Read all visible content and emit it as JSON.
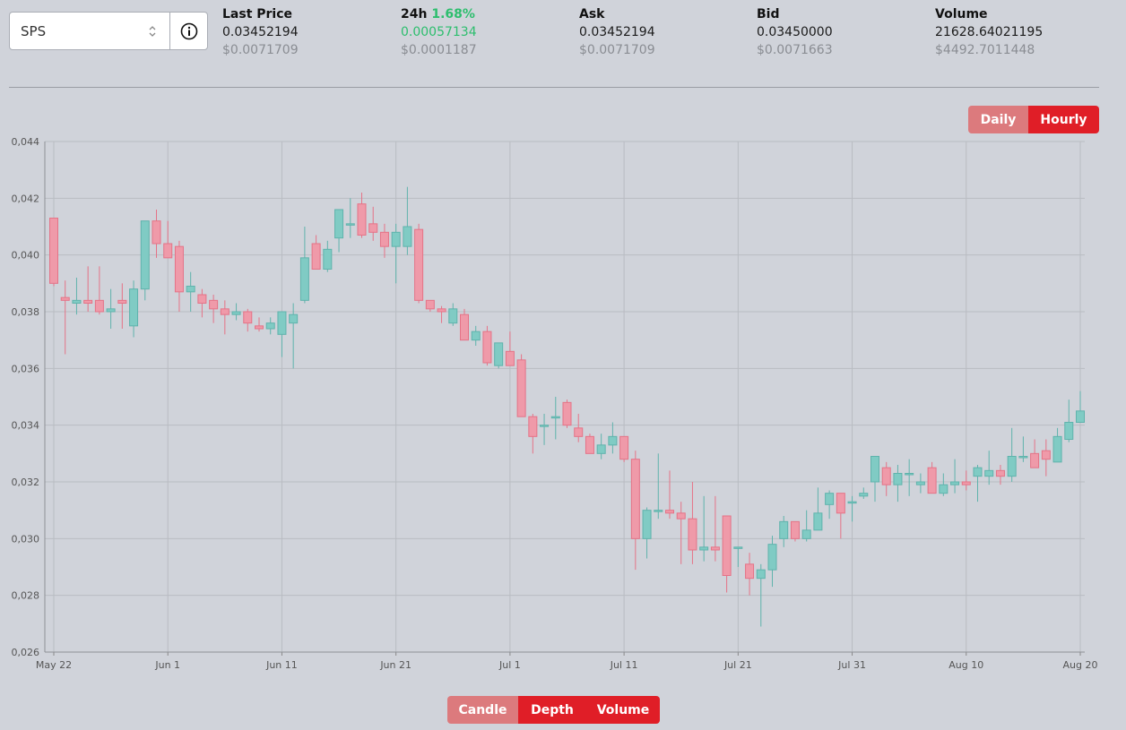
{
  "selector": {
    "value": "SPS"
  },
  "stats": {
    "last_price": {
      "label": "Last Price",
      "value": "0.03452194",
      "usd": "$0.0071709"
    },
    "change_24h": {
      "label": "24h",
      "pct": "1.68%",
      "value": "0.00057134",
      "usd": "$0.0001187"
    },
    "ask": {
      "label": "Ask",
      "value": "0.03452194",
      "usd": "$0.0071709"
    },
    "bid": {
      "label": "Bid",
      "value": "0.03450000",
      "usd": "$0.0071663"
    },
    "volume": {
      "label": "Volume",
      "value": "21628.64021195",
      "usd": "$4492.7011448"
    }
  },
  "range_toggle": {
    "daily": "Daily",
    "hourly": "Hourly"
  },
  "view_toggle": {
    "candle": "Candle",
    "depth": "Depth",
    "volume": "Volume"
  },
  "colors": {
    "up": "#80cbc4",
    "up_stroke": "#5fb3ac",
    "down": "#ef9aa9",
    "down_stroke": "#e57387",
    "active": "#e01e27",
    "inactive": "#dc7a7d"
  },
  "chart_data": {
    "type": "candlestick",
    "ylim": [
      0.026,
      0.044
    ],
    "y_ticks": [
      "0,026",
      "0,028",
      "0,030",
      "0,032",
      "0,034",
      "0,036",
      "0,038",
      "0,040",
      "0,042",
      "0,044"
    ],
    "x_ticks": [
      "May 22",
      "Jun 1",
      "Jun 11",
      "Jun 21",
      "Jul 1",
      "Jul 11",
      "Jul 21",
      "Jul 31",
      "Aug 10",
      "Aug 20"
    ],
    "grid": true,
    "candles": [
      {
        "d": "May 22",
        "o": 0.0413,
        "h": 0.0413,
        "l": 0.0389,
        "c": 0.039
      },
      {
        "d": "May 23",
        "o": 0.0385,
        "h": 0.0391,
        "l": 0.0365,
        "c": 0.0384
      },
      {
        "d": "May 24",
        "o": 0.0383,
        "h": 0.0392,
        "l": 0.0379,
        "c": 0.0384
      },
      {
        "d": "May 25",
        "o": 0.0384,
        "h": 0.0396,
        "l": 0.038,
        "c": 0.0383
      },
      {
        "d": "May 26",
        "o": 0.0384,
        "h": 0.0396,
        "l": 0.0379,
        "c": 0.038
      },
      {
        "d": "May 27",
        "o": 0.038,
        "h": 0.0388,
        "l": 0.0374,
        "c": 0.0381
      },
      {
        "d": "May 28",
        "o": 0.0384,
        "h": 0.039,
        "l": 0.0374,
        "c": 0.0383
      },
      {
        "d": "May 29",
        "o": 0.0375,
        "h": 0.0391,
        "l": 0.0371,
        "c": 0.0388
      },
      {
        "d": "May 30",
        "o": 0.0388,
        "h": 0.0412,
        "l": 0.0384,
        "c": 0.0412
      },
      {
        "d": "May 31",
        "o": 0.0412,
        "h": 0.0416,
        "l": 0.0399,
        "c": 0.0404
      },
      {
        "d": "Jun 1",
        "o": 0.0404,
        "h": 0.0412,
        "l": 0.0399,
        "c": 0.0399
      },
      {
        "d": "Jun 2",
        "o": 0.0403,
        "h": 0.0405,
        "l": 0.038,
        "c": 0.0387
      },
      {
        "d": "Jun 3",
        "o": 0.0387,
        "h": 0.0394,
        "l": 0.038,
        "c": 0.0389
      },
      {
        "d": "Jun 4",
        "o": 0.0386,
        "h": 0.0388,
        "l": 0.0378,
        "c": 0.0383
      },
      {
        "d": "Jun 5",
        "o": 0.0384,
        "h": 0.0386,
        "l": 0.0376,
        "c": 0.0381
      },
      {
        "d": "Jun 6",
        "o": 0.0381,
        "h": 0.0384,
        "l": 0.0372,
        "c": 0.0379
      },
      {
        "d": "Jun 7",
        "o": 0.0379,
        "h": 0.0383,
        "l": 0.0377,
        "c": 0.038
      },
      {
        "d": "Jun 8",
        "o": 0.038,
        "h": 0.0381,
        "l": 0.0373,
        "c": 0.0376
      },
      {
        "d": "Jun 9",
        "o": 0.0375,
        "h": 0.0378,
        "l": 0.0373,
        "c": 0.0374
      },
      {
        "d": "Jun 10",
        "o": 0.0374,
        "h": 0.0378,
        "l": 0.0372,
        "c": 0.0376
      },
      {
        "d": "Jun 11",
        "o": 0.0372,
        "h": 0.038,
        "l": 0.0364,
        "c": 0.038
      },
      {
        "d": "Jun 12",
        "o": 0.0376,
        "h": 0.0383,
        "l": 0.036,
        "c": 0.0379
      },
      {
        "d": "Jun 13",
        "o": 0.0384,
        "h": 0.041,
        "l": 0.0383,
        "c": 0.0399
      },
      {
        "d": "Jun 14",
        "o": 0.0404,
        "h": 0.0407,
        "l": 0.0395,
        "c": 0.0395
      },
      {
        "d": "Jun 15",
        "o": 0.0395,
        "h": 0.0405,
        "l": 0.0394,
        "c": 0.0402
      },
      {
        "d": "Jun 16",
        "o": 0.0406,
        "h": 0.0416,
        "l": 0.0401,
        "c": 0.0416
      },
      {
        "d": "Jun 17",
        "o": 0.0411,
        "h": 0.042,
        "l": 0.0406,
        "c": 0.0411
      },
      {
        "d": "Jun 18",
        "o": 0.0418,
        "h": 0.0422,
        "l": 0.0406,
        "c": 0.0407
      },
      {
        "d": "Jun 19",
        "o": 0.0411,
        "h": 0.0417,
        "l": 0.0405,
        "c": 0.0408
      },
      {
        "d": "Jun 20",
        "o": 0.0408,
        "h": 0.0411,
        "l": 0.0399,
        "c": 0.0403
      },
      {
        "d": "Jun 21",
        "o": 0.0403,
        "h": 0.0411,
        "l": 0.039,
        "c": 0.0408
      },
      {
        "d": "Jun 22",
        "o": 0.0403,
        "h": 0.0424,
        "l": 0.04,
        "c": 0.041
      },
      {
        "d": "Jun 23",
        "o": 0.0409,
        "h": 0.0411,
        "l": 0.0383,
        "c": 0.0384
      },
      {
        "d": "Jun 24",
        "o": 0.0384,
        "h": 0.0384,
        "l": 0.038,
        "c": 0.0381
      },
      {
        "d": "Jun 25",
        "o": 0.0381,
        "h": 0.0382,
        "l": 0.0376,
        "c": 0.038
      },
      {
        "d": "Jun 26",
        "o": 0.0376,
        "h": 0.0383,
        "l": 0.0375,
        "c": 0.0381
      },
      {
        "d": "Jun 27",
        "o": 0.0379,
        "h": 0.0381,
        "l": 0.037,
        "c": 0.037
      },
      {
        "d": "Jun 28",
        "o": 0.037,
        "h": 0.0375,
        "l": 0.0368,
        "c": 0.0373
      },
      {
        "d": "Jun 29",
        "o": 0.0373,
        "h": 0.0375,
        "l": 0.0361,
        "c": 0.0362
      },
      {
        "d": "Jun 30",
        "o": 0.0361,
        "h": 0.0369,
        "l": 0.036,
        "c": 0.0369
      },
      {
        "d": "Jul 1",
        "o": 0.0366,
        "h": 0.0373,
        "l": 0.0361,
        "c": 0.0361
      },
      {
        "d": "Jul 2",
        "o": 0.0363,
        "h": 0.0365,
        "l": 0.0343,
        "c": 0.0343
      },
      {
        "d": "Jul 3",
        "o": 0.0343,
        "h": 0.0344,
        "l": 0.033,
        "c": 0.0336
      },
      {
        "d": "Jul 4",
        "o": 0.034,
        "h": 0.0344,
        "l": 0.0333,
        "c": 0.034
      },
      {
        "d": "Jul 5",
        "o": 0.0343,
        "h": 0.035,
        "l": 0.0335,
        "c": 0.0343
      },
      {
        "d": "Jul 6",
        "o": 0.0348,
        "h": 0.0349,
        "l": 0.0339,
        "c": 0.034
      },
      {
        "d": "Jul 7",
        "o": 0.0339,
        "h": 0.0344,
        "l": 0.0334,
        "c": 0.0336
      },
      {
        "d": "Jul 8",
        "o": 0.0336,
        "h": 0.0337,
        "l": 0.033,
        "c": 0.033
      },
      {
        "d": "Jul 9",
        "o": 0.033,
        "h": 0.0337,
        "l": 0.0328,
        "c": 0.0333
      },
      {
        "d": "Jul 10",
        "o": 0.0333,
        "h": 0.0341,
        "l": 0.033,
        "c": 0.0336
      },
      {
        "d": "Jul 11",
        "o": 0.0336,
        "h": 0.0336,
        "l": 0.0327,
        "c": 0.0328
      },
      {
        "d": "Jul 12",
        "o": 0.0328,
        "h": 0.0331,
        "l": 0.0289,
        "c": 0.03
      },
      {
        "d": "Jul 13",
        "o": 0.03,
        "h": 0.0311,
        "l": 0.0293,
        "c": 0.031
      },
      {
        "d": "Jul 14",
        "o": 0.031,
        "h": 0.033,
        "l": 0.0307,
        "c": 0.031
      },
      {
        "d": "Jul 15",
        "o": 0.031,
        "h": 0.0324,
        "l": 0.0307,
        "c": 0.0309
      },
      {
        "d": "Jul 16",
        "o": 0.0309,
        "h": 0.0313,
        "l": 0.0291,
        "c": 0.0307
      },
      {
        "d": "Jul 17",
        "o": 0.0307,
        "h": 0.032,
        "l": 0.0291,
        "c": 0.0296
      },
      {
        "d": "Jul 18",
        "o": 0.0296,
        "h": 0.0315,
        "l": 0.0292,
        "c": 0.0297
      },
      {
        "d": "Jul 19",
        "o": 0.0297,
        "h": 0.0315,
        "l": 0.0292,
        "c": 0.0296
      },
      {
        "d": "Jul 20",
        "o": 0.0308,
        "h": 0.0308,
        "l": 0.0281,
        "c": 0.0287
      },
      {
        "d": "Jul 21",
        "o": 0.0297,
        "h": 0.0297,
        "l": 0.029,
        "c": 0.0297
      },
      {
        "d": "Jul 22",
        "o": 0.0291,
        "h": 0.0295,
        "l": 0.028,
        "c": 0.0286
      },
      {
        "d": "Jul 23",
        "o": 0.0286,
        "h": 0.0291,
        "l": 0.0269,
        "c": 0.0289
      },
      {
        "d": "Jul 24",
        "o": 0.0289,
        "h": 0.0301,
        "l": 0.0283,
        "c": 0.0298
      },
      {
        "d": "Jul 25",
        "o": 0.03,
        "h": 0.0308,
        "l": 0.0297,
        "c": 0.0306
      },
      {
        "d": "Jul 26",
        "o": 0.0306,
        "h": 0.0306,
        "l": 0.0299,
        "c": 0.03
      },
      {
        "d": "Jul 27",
        "o": 0.03,
        "h": 0.031,
        "l": 0.0299,
        "c": 0.0303
      },
      {
        "d": "Jul 28",
        "o": 0.0303,
        "h": 0.0318,
        "l": 0.0303,
        "c": 0.0309
      },
      {
        "d": "Jul 29",
        "o": 0.0312,
        "h": 0.0317,
        "l": 0.0307,
        "c": 0.0316
      },
      {
        "d": "Jul 30",
        "o": 0.0316,
        "h": 0.0316,
        "l": 0.03,
        "c": 0.0309
      },
      {
        "d": "Jul 31",
        "o": 0.0313,
        "h": 0.0315,
        "l": 0.0306,
        "c": 0.0313
      },
      {
        "d": "Aug 1",
        "o": 0.0315,
        "h": 0.0318,
        "l": 0.0314,
        "c": 0.0316
      },
      {
        "d": "Aug 2",
        "o": 0.032,
        "h": 0.0329,
        "l": 0.0313,
        "c": 0.0329
      },
      {
        "d": "Aug 3",
        "o": 0.0325,
        "h": 0.0327,
        "l": 0.0315,
        "c": 0.0319
      },
      {
        "d": "Aug 4",
        "o": 0.0319,
        "h": 0.0326,
        "l": 0.0313,
        "c": 0.0323
      },
      {
        "d": "Aug 5",
        "o": 0.0323,
        "h": 0.0328,
        "l": 0.0315,
        "c": 0.0323
      },
      {
        "d": "Aug 6",
        "o": 0.0319,
        "h": 0.0323,
        "l": 0.0316,
        "c": 0.032
      },
      {
        "d": "Aug 7",
        "o": 0.0325,
        "h": 0.0327,
        "l": 0.0316,
        "c": 0.0316
      },
      {
        "d": "Aug 8",
        "o": 0.0316,
        "h": 0.0323,
        "l": 0.0315,
        "c": 0.0319
      },
      {
        "d": "Aug 9",
        "o": 0.0319,
        "h": 0.0328,
        "l": 0.0316,
        "c": 0.032
      },
      {
        "d": "Aug 10",
        "o": 0.032,
        "h": 0.0324,
        "l": 0.0317,
        "c": 0.0319
      },
      {
        "d": "Aug 11",
        "o": 0.0322,
        "h": 0.0326,
        "l": 0.0313,
        "c": 0.0325
      },
      {
        "d": "Aug 12",
        "o": 0.0322,
        "h": 0.0331,
        "l": 0.0319,
        "c": 0.0324
      },
      {
        "d": "Aug 13",
        "o": 0.0324,
        "h": 0.0326,
        "l": 0.0319,
        "c": 0.0322
      },
      {
        "d": "Aug 14",
        "o": 0.0322,
        "h": 0.0339,
        "l": 0.032,
        "c": 0.0329
      },
      {
        "d": "Aug 15",
        "o": 0.0329,
        "h": 0.0336,
        "l": 0.0327,
        "c": 0.0329
      },
      {
        "d": "Aug 16",
        "o": 0.033,
        "h": 0.0335,
        "l": 0.0325,
        "c": 0.0325
      },
      {
        "d": "Aug 17",
        "o": 0.0331,
        "h": 0.0335,
        "l": 0.0322,
        "c": 0.0328
      },
      {
        "d": "Aug 18",
        "o": 0.0327,
        "h": 0.0339,
        "l": 0.0327,
        "c": 0.0336
      },
      {
        "d": "Aug 19",
        "o": 0.0335,
        "h": 0.0349,
        "l": 0.0334,
        "c": 0.0341
      },
      {
        "d": "Aug 20",
        "o": 0.0341,
        "h": 0.0352,
        "l": 0.0341,
        "c": 0.0345
      }
    ]
  }
}
